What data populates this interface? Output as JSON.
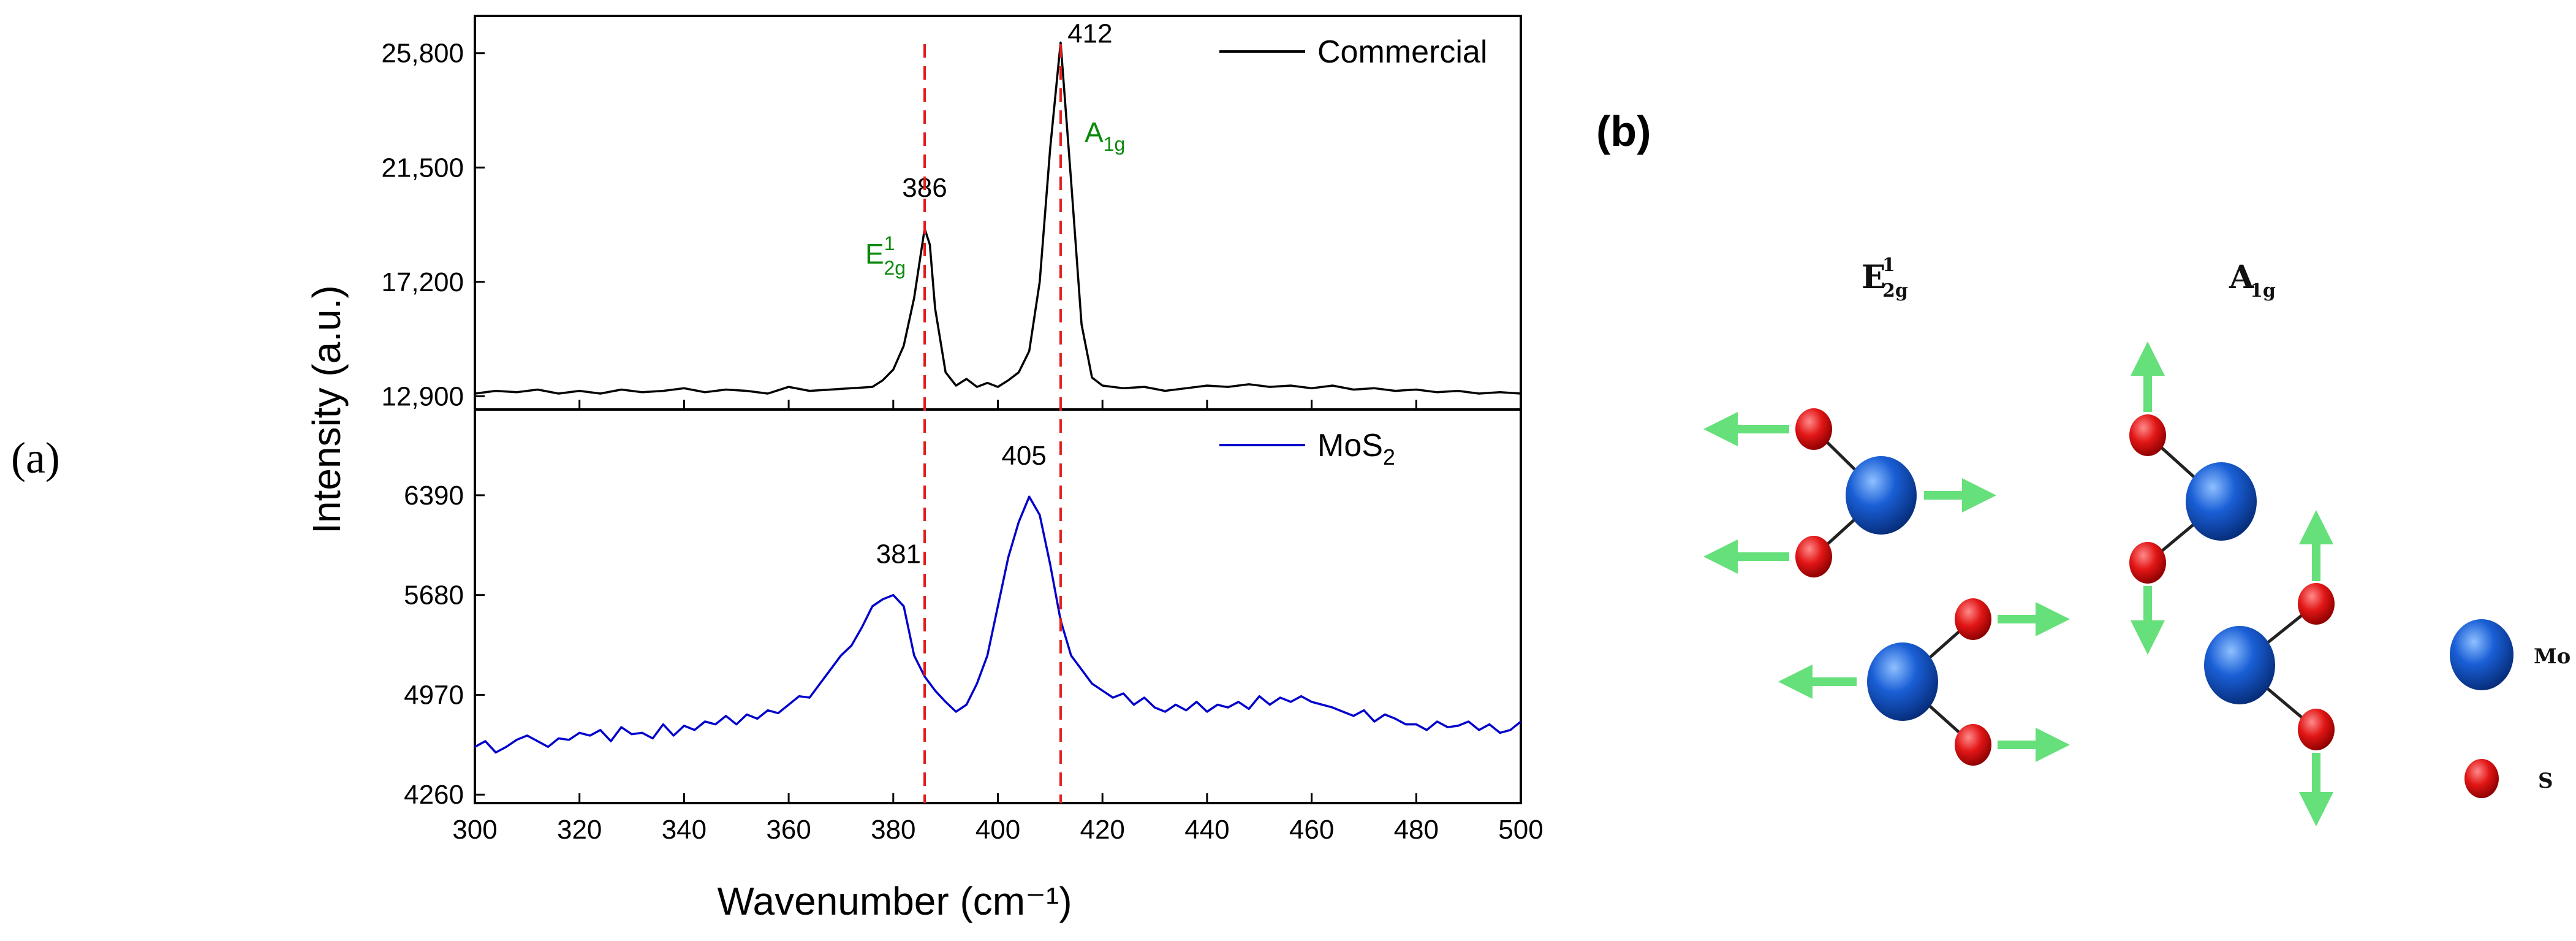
{
  "panel_a_label": "(a)",
  "panel_b_label": "(b)",
  "chart_data": {
    "type": "line",
    "xlabel": "Wavenumber (cm⁻¹)",
    "ylabel": "Intensity (a.u.)",
    "xlim": [
      300,
      500
    ],
    "x_ticks": [
      300,
      320,
      340,
      360,
      380,
      400,
      420,
      440,
      460,
      480,
      500
    ],
    "reference_lines": [
      386,
      412
    ],
    "panels": [
      {
        "name": "top",
        "series_name": "Commercial",
        "color": "#000000",
        "ylim": [
          12400,
          27200
        ],
        "y_ticks": [
          12900,
          17200,
          21500,
          25800
        ],
        "y_tick_labels": [
          "12,900",
          "17,200",
          "21,500",
          "25,800"
        ],
        "x": [
          300,
          304,
          308,
          312,
          316,
          320,
          324,
          328,
          332,
          336,
          340,
          344,
          348,
          352,
          356,
          360,
          364,
          368,
          372,
          376,
          378,
          380,
          382,
          384,
          386,
          387,
          388,
          390,
          392,
          394,
          396,
          398,
          400,
          402,
          404,
          406,
          408,
          410,
          412,
          414,
          416,
          418,
          420,
          424,
          428,
          432,
          436,
          440,
          444,
          448,
          452,
          456,
          460,
          464,
          468,
          472,
          476,
          480,
          484,
          488,
          492,
          496,
          500
        ],
        "y": [
          13000,
          13100,
          13050,
          13150,
          13000,
          13100,
          13000,
          13150,
          13050,
          13100,
          13200,
          13050,
          13150,
          13100,
          13000,
          13250,
          13100,
          13150,
          13200,
          13250,
          13500,
          13900,
          14800,
          16600,
          19200,
          18600,
          16200,
          13800,
          13300,
          13550,
          13250,
          13400,
          13250,
          13500,
          13800,
          14600,
          17200,
          22200,
          26200,
          21000,
          15600,
          13600,
          13300,
          13200,
          13250,
          13100,
          13200,
          13300,
          13250,
          13350,
          13250,
          13300,
          13200,
          13300,
          13150,
          13200,
          13100,
          13150,
          13050,
          13100,
          13000,
          13050,
          13000
        ],
        "peak_labels": [
          {
            "x": 386,
            "y": 19200,
            "text": "386"
          },
          {
            "x": 412,
            "y": 26200,
            "text": "412"
          }
        ],
        "mode_labels": [
          {
            "base": "E",
            "sub": "2g",
            "sup": "1"
          },
          {
            "base": "A",
            "sub": "1g",
            "sup": ""
          }
        ]
      },
      {
        "name": "bottom",
        "series_name": "MoS",
        "series_name_sub": "2",
        "color": "#0000cc",
        "ylim": [
          4200,
          7000
        ],
        "y_ticks": [
          4260,
          4970,
          5680,
          6390
        ],
        "y_tick_labels": [
          "4260",
          "4970",
          "5680",
          "6390"
        ],
        "x": [
          300,
          302,
          304,
          306,
          308,
          310,
          312,
          314,
          316,
          318,
          320,
          322,
          324,
          326,
          328,
          330,
          332,
          334,
          336,
          338,
          340,
          342,
          344,
          346,
          348,
          350,
          352,
          354,
          356,
          358,
          360,
          362,
          364,
          366,
          368,
          370,
          372,
          374,
          376,
          378,
          380,
          382,
          384,
          386,
          388,
          390,
          392,
          394,
          396,
          398,
          400,
          402,
          404,
          406,
          408,
          410,
          412,
          414,
          416,
          418,
          420,
          422,
          424,
          426,
          428,
          430,
          432,
          434,
          436,
          438,
          440,
          442,
          444,
          446,
          448,
          450,
          452,
          454,
          456,
          458,
          460,
          462,
          464,
          466,
          468,
          470,
          472,
          474,
          476,
          478,
          480,
          482,
          484,
          486,
          488,
          490,
          492,
          494,
          496,
          498,
          500
        ],
        "y": [
          4600,
          4640,
          4560,
          4600,
          4650,
          4680,
          4640,
          4600,
          4660,
          4650,
          4700,
          4680,
          4720,
          4640,
          4740,
          4690,
          4700,
          4660,
          4760,
          4680,
          4750,
          4720,
          4780,
          4760,
          4820,
          4760,
          4830,
          4800,
          4860,
          4840,
          4900,
          4960,
          4950,
          5050,
          5150,
          5250,
          5320,
          5450,
          5600,
          5650,
          5680,
          5600,
          5250,
          5100,
          5000,
          4920,
          4850,
          4900,
          5050,
          5250,
          5600,
          5950,
          6200,
          6380,
          6250,
          5900,
          5500,
          5250,
          5150,
          5050,
          5000,
          4950,
          4980,
          4900,
          4950,
          4880,
          4850,
          4900,
          4860,
          4920,
          4850,
          4900,
          4880,
          4920,
          4870,
          4960,
          4900,
          4950,
          4920,
          4960,
          4920,
          4900,
          4880,
          4850,
          4820,
          4860,
          4780,
          4830,
          4800,
          4760,
          4760,
          4720,
          4780,
          4740,
          4750,
          4780,
          4720,
          4760,
          4700,
          4720,
          4780
        ],
        "peak_labels": [
          {
            "x": 381,
            "y": 5680,
            "text": "381"
          },
          {
            "x": 405,
            "y": 6380,
            "text": "405"
          }
        ]
      }
    ]
  },
  "diagram": {
    "mode_e": {
      "base": "E",
      "sub": "2g",
      "sup": "1"
    },
    "mode_a": {
      "base": "A",
      "sub": "1g"
    },
    "legend_mo": "Mo",
    "legend_s": "S",
    "colors": {
      "mo": "#1a5fd6",
      "s": "#e21616",
      "arrow": "#66e07a",
      "bond": "#222222"
    }
  }
}
